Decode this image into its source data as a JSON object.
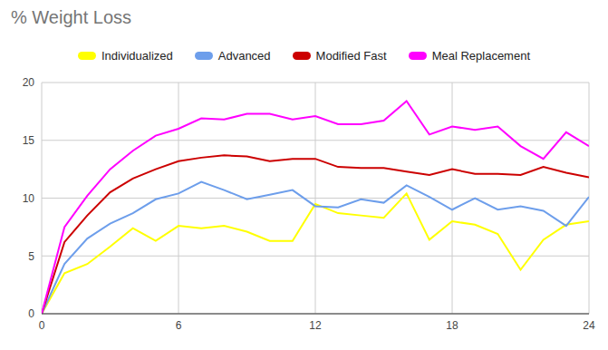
{
  "chart_data": {
    "type": "line",
    "title": "% Weight Loss",
    "x": [
      0,
      1,
      2,
      3,
      4,
      5,
      6,
      7,
      8,
      9,
      10,
      11,
      12,
      13,
      14,
      15,
      16,
      17,
      18,
      19,
      20,
      21,
      22,
      23,
      24
    ],
    "series": [
      {
        "name": "Individualized",
        "color": "#ffff00",
        "values": [
          0,
          3.5,
          4.3,
          5.8,
          7.4,
          6.3,
          7.6,
          7.4,
          7.6,
          7.1,
          6.3,
          6.3,
          9.5,
          8.7,
          8.5,
          8.3,
          10.4,
          6.4,
          8.0,
          7.7,
          6.9,
          3.8,
          6.4,
          7.7,
          8.0
        ]
      },
      {
        "name": "Advanced",
        "color": "#6d9eeb",
        "values": [
          0,
          4.3,
          6.5,
          7.8,
          8.7,
          9.9,
          10.4,
          11.4,
          10.7,
          9.9,
          10.3,
          10.7,
          9.3,
          9.2,
          9.9,
          9.6,
          11.1,
          10.1,
          9.0,
          10.0,
          9.0,
          9.3,
          8.9,
          7.6,
          10.1
        ]
      },
      {
        "name": "Modified Fast",
        "color": "#cc0000",
        "values": [
          0,
          6.2,
          8.5,
          10.5,
          11.7,
          12.5,
          13.2,
          13.5,
          13.7,
          13.6,
          13.2,
          13.4,
          13.4,
          12.7,
          12.6,
          12.6,
          12.3,
          12.0,
          12.5,
          12.1,
          12.1,
          12.0,
          12.7,
          12.2,
          11.8
        ]
      },
      {
        "name": "Meal Replacement",
        "color": "#ff00ff",
        "values": [
          0,
          7.5,
          10.2,
          12.5,
          14.1,
          15.4,
          16.0,
          16.9,
          16.8,
          17.3,
          17.3,
          16.8,
          17.1,
          16.4,
          16.4,
          16.7,
          18.4,
          15.5,
          16.2,
          15.9,
          16.2,
          14.5,
          13.4,
          15.7,
          14.5
        ]
      }
    ],
    "xlim": [
      0,
      24
    ],
    "ylim": [
      0,
      20
    ],
    "xticks": [
      0,
      6,
      12,
      18,
      24
    ],
    "yticks": [
      0,
      5,
      10,
      15,
      20
    ],
    "grid": true,
    "legend": "top"
  }
}
